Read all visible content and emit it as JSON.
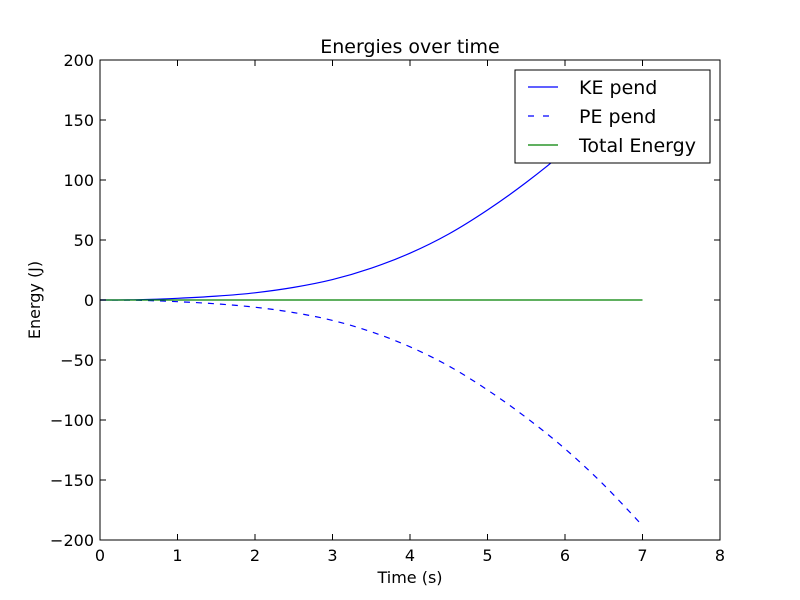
{
  "chart_data": {
    "type": "line",
    "title": "Energies over time",
    "xlabel": "Time (s)",
    "ylabel": "Energy (J)",
    "xlim": [
      0,
      8
    ],
    "ylim": [
      -200,
      200
    ],
    "x_ticks": [
      "0",
      "1",
      "2",
      "3",
      "4",
      "5",
      "6",
      "7",
      "8"
    ],
    "y_ticks": [
      "200",
      "150",
      "100",
      "50",
      "0",
      "−50",
      "−100",
      "−150",
      "−200"
    ],
    "x_tick_values": [
      0,
      1,
      2,
      3,
      4,
      5,
      6,
      7,
      8
    ],
    "y_tick_values": [
      200,
      150,
      100,
      50,
      0,
      -50,
      -100,
      -150,
      -200
    ],
    "grid": false,
    "legend_position": "top-right",
    "series": [
      {
        "name": "KE pend",
        "color": "#0000ff",
        "style": "solid",
        "x": [
          0,
          0.5,
          1,
          1.5,
          2,
          2.5,
          3,
          3.5,
          4,
          4.5,
          5,
          5.5,
          6,
          6.5,
          7
        ],
        "y": [
          0,
          0.25,
          1.4,
          3.2,
          6.0,
          10.5,
          17.0,
          26.5,
          39.0,
          55.0,
          75.0,
          98.0,
          124.0,
          154.0,
          188.0
        ]
      },
      {
        "name": "PE pend",
        "color": "#0000ff",
        "style": "dashed",
        "x": [
          0,
          0.5,
          1,
          1.5,
          2,
          2.5,
          3,
          3.5,
          4,
          4.5,
          5,
          5.5,
          6,
          6.5,
          7
        ],
        "y": [
          0,
          -0.25,
          -1.4,
          -3.2,
          -6.0,
          -10.5,
          -17.0,
          -26.5,
          -39.0,
          -55.0,
          -75.0,
          -98.0,
          -124.0,
          -154.0,
          -188.0
        ]
      },
      {
        "name": "Total Energy",
        "color": "#008000",
        "style": "solid",
        "x": [
          0,
          7
        ],
        "y": [
          0,
          0
        ]
      }
    ]
  }
}
